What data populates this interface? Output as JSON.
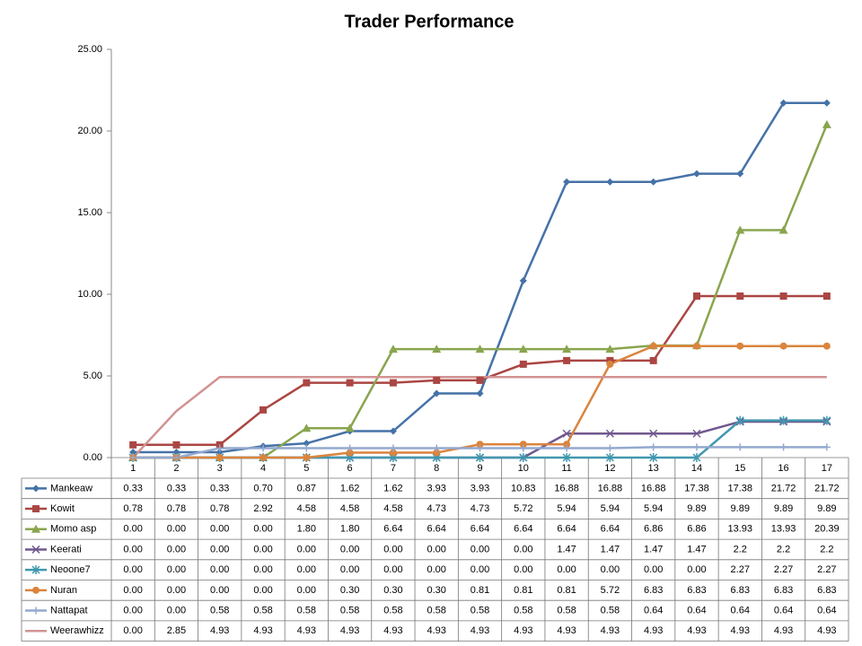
{
  "chart_data": {
    "type": "line",
    "title": "Trader Performance",
    "categories": [
      "1",
      "2",
      "3",
      "4",
      "5",
      "6",
      "7",
      "8",
      "9",
      "10",
      "11",
      "12",
      "13",
      "14",
      "15",
      "16",
      "17"
    ],
    "ylim": [
      0,
      25
    ],
    "yticks": [
      {
        "value": 0,
        "label": "0.00"
      },
      {
        "value": 5,
        "label": "5.00"
      },
      {
        "value": 10,
        "label": "10.00"
      },
      {
        "value": 15,
        "label": "15.00"
      },
      {
        "value": 20,
        "label": "20.00"
      },
      {
        "value": 25,
        "label": "25.00"
      }
    ],
    "series": [
      {
        "name": "Mankeaw",
        "color": "#4572a7",
        "marker": "diamond",
        "values": [
          0.33,
          0.33,
          0.33,
          0.7,
          0.87,
          1.62,
          1.62,
          3.93,
          3.93,
          10.83,
          16.88,
          16.88,
          16.88,
          17.38,
          17.38,
          21.72,
          21.72
        ],
        "value_labels": [
          "0.33",
          "0.33",
          "0.33",
          "0.70",
          "0.87",
          "1.62",
          "1.62",
          "3.93",
          "3.93",
          "10.83",
          "16.88",
          "16.88",
          "16.88",
          "17.38",
          "17.38",
          "21.72",
          "21.72"
        ]
      },
      {
        "name": "Kowit",
        "color": "#aa4643",
        "marker": "square",
        "values": [
          0.78,
          0.78,
          0.78,
          2.92,
          4.58,
          4.58,
          4.58,
          4.73,
          4.73,
          5.72,
          5.94,
          5.94,
          5.94,
          9.89,
          9.89,
          9.89,
          9.89
        ],
        "value_labels": [
          "0.78",
          "0.78",
          "0.78",
          "2.92",
          "4.58",
          "4.58",
          "4.58",
          "4.73",
          "4.73",
          "5.72",
          "5.94",
          "5.94",
          "5.94",
          "9.89",
          "9.89",
          "9.89",
          "9.89"
        ]
      },
      {
        "name": "Momo asp",
        "color": "#89a54e",
        "marker": "triangle",
        "values": [
          0,
          0,
          0,
          0,
          1.8,
          1.8,
          6.64,
          6.64,
          6.64,
          6.64,
          6.64,
          6.64,
          6.86,
          6.86,
          13.93,
          13.93,
          20.39
        ],
        "value_labels": [
          "0.00",
          "0.00",
          "0.00",
          "0.00",
          "1.80",
          "1.80",
          "6.64",
          "6.64",
          "6.64",
          "6.64",
          "6.64",
          "6.64",
          "6.86",
          "6.86",
          "13.93",
          "13.93",
          "20.39"
        ]
      },
      {
        "name": "Keerati",
        "color": "#71588f",
        "marker": "x",
        "values": [
          0,
          0,
          0,
          0,
          0,
          0,
          0,
          0,
          0,
          0,
          1.47,
          1.47,
          1.47,
          1.47,
          2.2,
          2.2,
          2.2
        ],
        "value_labels": [
          "0.00",
          "0.00",
          "0.00",
          "0.00",
          "0.00",
          "0.00",
          "0.00",
          "0.00",
          "0.00",
          "0.00",
          "1.47",
          "1.47",
          "1.47",
          "1.47",
          "2.2",
          "2.2",
          "2.2"
        ]
      },
      {
        "name": "Neoone7",
        "color": "#4198af",
        "marker": "star",
        "values": [
          0,
          0,
          0,
          0,
          0,
          0,
          0,
          0,
          0,
          0,
          0,
          0,
          0,
          0,
          2.27,
          2.27,
          2.27
        ],
        "value_labels": [
          "0.00",
          "0.00",
          "0.00",
          "0.00",
          "0.00",
          "0.00",
          "0.00",
          "0.00",
          "0.00",
          "0.00",
          "0.00",
          "0.00",
          "0.00",
          "0.00",
          "2.27",
          "2.27",
          "2.27"
        ]
      },
      {
        "name": "Nuran",
        "color": "#db843d",
        "marker": "circle",
        "values": [
          0,
          0,
          0,
          0,
          0,
          0.3,
          0.3,
          0.3,
          0.81,
          0.81,
          0.81,
          5.72,
          6.83,
          6.83,
          6.83,
          6.83,
          6.83
        ],
        "value_labels": [
          "0.00",
          "0.00",
          "0.00",
          "0.00",
          "0.00",
          "0.30",
          "0.30",
          "0.30",
          "0.81",
          "0.81",
          "0.81",
          "5.72",
          "6.83",
          "6.83",
          "6.83",
          "6.83",
          "6.83"
        ]
      },
      {
        "name": "Nattapat",
        "color": "#93a9cf",
        "marker": "plus",
        "values": [
          0,
          0,
          0.58,
          0.58,
          0.58,
          0.58,
          0.58,
          0.58,
          0.58,
          0.58,
          0.58,
          0.58,
          0.64,
          0.64,
          0.64,
          0.64,
          0.64
        ],
        "value_labels": [
          "0.00",
          "0.00",
          "0.58",
          "0.58",
          "0.58",
          "0.58",
          "0.58",
          "0.58",
          "0.58",
          "0.58",
          "0.58",
          "0.58",
          "0.64",
          "0.64",
          "0.64",
          "0.64",
          "0.64"
        ]
      },
      {
        "name": "Weerawhizz",
        "color": "#d19392",
        "marker": "none",
        "values": [
          0,
          2.85,
          4.93,
          4.93,
          4.93,
          4.93,
          4.93,
          4.93,
          4.93,
          4.93,
          4.93,
          4.93,
          4.93,
          4.93,
          4.93,
          4.93,
          4.93
        ],
        "value_labels": [
          "0.00",
          "2.85",
          "4.93",
          "4.93",
          "4.93",
          "4.93",
          "4.93",
          "4.93",
          "4.93",
          "4.93",
          "4.93",
          "4.93",
          "4.93",
          "4.93",
          "4.93",
          "4.93",
          "4.93"
        ]
      }
    ]
  }
}
